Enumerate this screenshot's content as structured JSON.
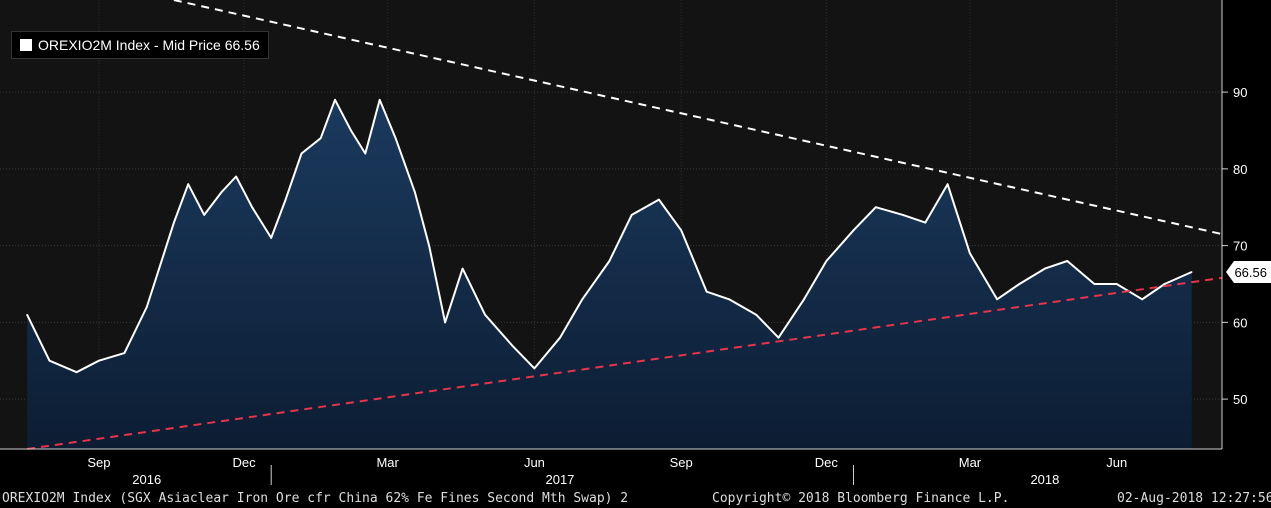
{
  "legend": {
    "label": "OREXIO2M Index - Mid Price 66.56"
  },
  "last_value_tag": "66.56",
  "footer": {
    "description": "OREXIO2M Index (SGX Asiaclear Iron Ore cfr China 62% Fe Fines Second Mth Swap) 2",
    "copyright": "Copyright© 2018 Bloomberg Finance L.P.",
    "timestamp": "02-Aug-2018 12:27:56"
  },
  "colors": {
    "background": "#000000",
    "plot_background": "#131313",
    "area_fill_top": "#1b3a5e",
    "area_fill_bottom": "#0c1d33",
    "line": "#ffffff",
    "resistance_trend": "#ffffff",
    "support_trend": "#e8334a"
  },
  "chart_data": {
    "type": "area",
    "title": "",
    "xlabel": "",
    "ylabel": "",
    "ylim": [
      43.5,
      102
    ],
    "y_ticks": [
      50,
      60,
      70,
      80,
      90
    ],
    "x_tick_labels": [
      "Sep",
      "Dec",
      "Mar",
      "Jun",
      "Sep",
      "Dec",
      "Mar",
      "Jun"
    ],
    "year_labels": [
      "2016",
      "2017",
      "2018"
    ],
    "grid": true,
    "legend_position": "top-left",
    "series": [
      {
        "name": "OREXIO2M Index - Mid Price",
        "last_value": 66.56,
        "x": [
          "2016-08-01",
          "2016-08-15",
          "2016-09-01",
          "2016-09-15",
          "2016-10-01",
          "2016-10-15",
          "2016-11-01",
          "2016-11-10",
          "2016-11-20",
          "2016-12-01",
          "2016-12-10",
          "2016-12-20",
          "2017-01-01",
          "2017-01-10",
          "2017-01-20",
          "2017-02-01",
          "2017-02-10",
          "2017-02-20",
          "2017-03-01",
          "2017-03-10",
          "2017-03-20",
          "2017-04-01",
          "2017-04-10",
          "2017-04-20",
          "2017-05-01",
          "2017-05-15",
          "2017-06-01",
          "2017-06-15",
          "2017-07-01",
          "2017-07-15",
          "2017-08-01",
          "2017-08-15",
          "2017-09-01",
          "2017-09-15",
          "2017-10-01",
          "2017-10-15",
          "2017-11-01",
          "2017-11-15",
          "2017-12-01",
          "2017-12-15",
          "2018-01-01",
          "2018-01-15",
          "2018-02-01",
          "2018-02-15",
          "2018-03-01",
          "2018-03-15",
          "2018-04-01",
          "2018-04-15",
          "2018-05-01",
          "2018-05-15",
          "2018-06-01",
          "2018-06-15",
          "2018-07-01",
          "2018-07-15",
          "2018-08-01"
        ],
        "values": [
          61,
          55,
          53.5,
          55,
          56,
          62,
          73,
          78,
          74,
          77,
          79,
          75,
          71,
          76,
          82,
          84,
          89,
          85,
          82,
          89,
          84,
          77,
          70,
          60,
          67,
          61,
          57,
          54,
          58,
          63,
          68,
          74,
          76,
          72,
          64,
          63,
          61,
          58,
          63,
          68,
          72,
          75,
          74,
          73,
          78,
          69,
          63,
          65,
          67,
          68,
          65,
          65,
          63,
          65,
          66.56
        ]
      }
    ],
    "trendlines": [
      {
        "style": "dashed",
        "color": "white",
        "start": [
          "2016-11-01",
          102
        ],
        "end": [
          "2018-08-20",
          71.5
        ]
      },
      {
        "style": "dashed",
        "color": "red",
        "start": [
          "2016-08-01",
          43.5
        ],
        "end": [
          "2018-08-20",
          65.8
        ]
      }
    ]
  }
}
